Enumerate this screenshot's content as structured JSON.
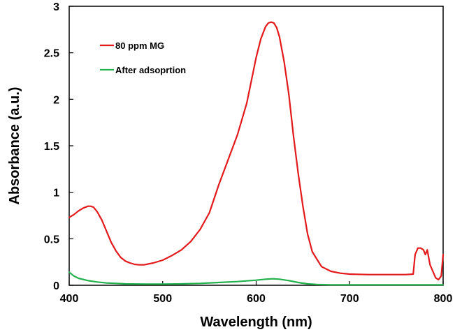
{
  "chart_data": {
    "type": "line",
    "title": "",
    "xlabel": "Wavelength (nm)",
    "ylabel": "Absorbance (a.u.)",
    "xlim": [
      400,
      800
    ],
    "ylim": [
      0,
      3
    ],
    "xticks": [
      400,
      500,
      600,
      700,
      800
    ],
    "yticks": [
      0,
      0.5,
      1,
      1.5,
      2,
      2.5,
      3
    ],
    "xtick_labels": [
      "400",
      "500",
      "600",
      "700",
      "800"
    ],
    "ytick_labels": [
      "0",
      "0.5",
      "1",
      "1.5",
      "2",
      "2.5",
      "3"
    ],
    "grid": false,
    "legend_position": "top-left",
    "series": [
      {
        "name": "80 ppm MG",
        "color": "#e31a1c",
        "x": [
          400,
          405,
          410,
          415,
          420,
          423,
          426,
          430,
          435,
          440,
          445,
          450,
          455,
          460,
          465,
          470,
          475,
          480,
          490,
          500,
          510,
          520,
          530,
          540,
          550,
          560,
          570,
          580,
          590,
          600,
          605,
          610,
          613,
          616,
          619,
          622,
          625,
          630,
          635,
          640,
          645,
          650,
          655,
          660,
          670,
          680,
          690,
          700,
          720,
          740,
          760,
          768,
          770,
          773,
          776,
          779,
          781,
          783,
          786,
          789,
          792,
          795,
          798,
          800
        ],
        "y": [
          0.73,
          0.76,
          0.8,
          0.83,
          0.85,
          0.85,
          0.84,
          0.79,
          0.7,
          0.58,
          0.46,
          0.37,
          0.3,
          0.26,
          0.24,
          0.225,
          0.22,
          0.22,
          0.24,
          0.27,
          0.32,
          0.38,
          0.47,
          0.6,
          0.78,
          1.08,
          1.35,
          1.62,
          1.96,
          2.45,
          2.65,
          2.78,
          2.82,
          2.83,
          2.82,
          2.77,
          2.67,
          2.4,
          2.05,
          1.6,
          1.2,
          0.85,
          0.55,
          0.36,
          0.2,
          0.15,
          0.13,
          0.12,
          0.115,
          0.115,
          0.115,
          0.12,
          0.33,
          0.4,
          0.4,
          0.38,
          0.33,
          0.38,
          0.22,
          0.15,
          0.08,
          0.06,
          0.1,
          0.33
        ]
      },
      {
        "name": "After adsoprtion",
        "color": "#22b14c",
        "x": [
          400,
          405,
          410,
          420,
          430,
          440,
          450,
          460,
          480,
          500,
          520,
          540,
          560,
          580,
          600,
          610,
          618,
          625,
          635,
          645,
          655,
          665,
          680,
          700,
          750,
          800
        ],
        "y": [
          0.14,
          0.1,
          0.075,
          0.05,
          0.035,
          0.025,
          0.02,
          0.015,
          0.012,
          0.012,
          0.015,
          0.02,
          0.03,
          0.04,
          0.055,
          0.065,
          0.07,
          0.065,
          0.05,
          0.03,
          0.015,
          0.008,
          0.005,
          0.005,
          0.005,
          0.005
        ]
      }
    ]
  }
}
